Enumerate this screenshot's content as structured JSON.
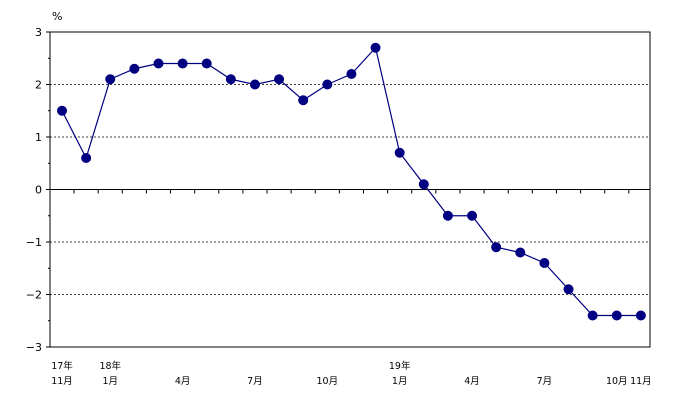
{
  "chart_data": {
    "type": "line",
    "unit_label": "%",
    "ylim": [
      -3,
      3
    ],
    "yticks": [
      3,
      2,
      1,
      0,
      -1,
      -2,
      -3
    ],
    "ytick_labels": [
      "3",
      "2",
      "1",
      "0",
      "−1",
      "−2",
      "−3"
    ],
    "grid": "dashed horizontal at 2, 1, -1, -2",
    "series": [
      {
        "color": "#000080",
        "values": [
          1.5,
          0.6,
          2.1,
          2.3,
          2.4,
          2.4,
          2.4,
          2.1,
          2.0,
          2.1,
          1.7,
          2.0,
          2.2,
          2.7,
          0.7,
          0.1,
          -0.5,
          -0.5,
          -1.1,
          -1.2,
          -1.4,
          -1.9,
          -2.4,
          -2.4,
          -2.4
        ]
      }
    ],
    "x_labels": [
      {
        "index": 0,
        "year": "17年",
        "month": "11月"
      },
      {
        "index": 2,
        "year": "18年",
        "month": "1月"
      },
      {
        "index": 5,
        "year": "",
        "month": "4月"
      },
      {
        "index": 8,
        "year": "",
        "month": "7月"
      },
      {
        "index": 11,
        "year": "",
        "month": "10月"
      },
      {
        "index": 14,
        "year": "19年",
        "month": "1月"
      },
      {
        "index": 17,
        "year": "",
        "month": "4月"
      },
      {
        "index": 20,
        "year": "",
        "month": "7月"
      },
      {
        "index": 23,
        "year": "",
        "month": "10月"
      },
      {
        "index": 24,
        "year": "",
        "month": "11月"
      }
    ]
  }
}
